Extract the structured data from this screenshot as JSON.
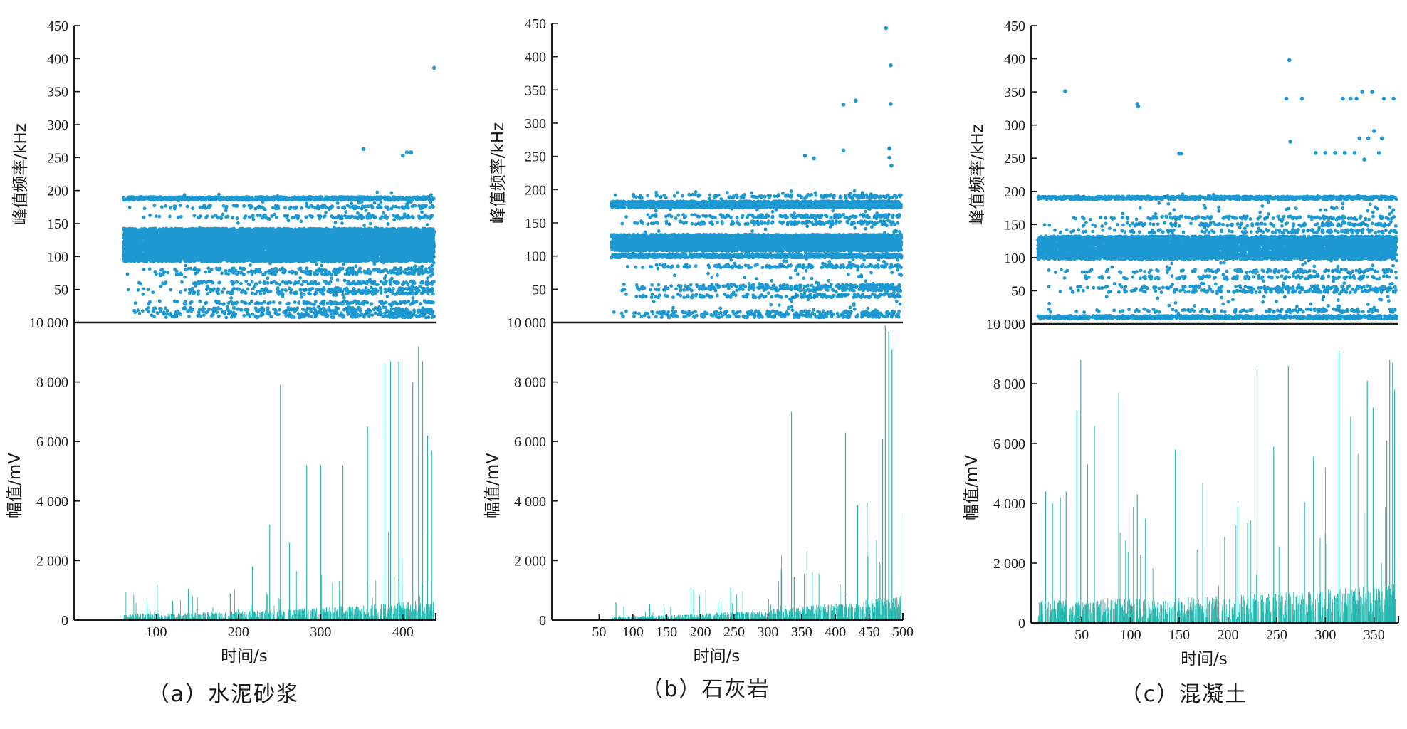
{
  "chart_data": [
    {
      "id": "a",
      "type": "scatter+bar",
      "caption": "（a）水泥砂浆",
      "xlabel": "时间/s",
      "ylabel_top": "峰值频率/kHz",
      "ylabel_bottom": "幅值/mV",
      "xlim": [
        0,
        440
      ],
      "xticks": [
        100,
        200,
        300,
        400
      ],
      "top_ylim": [
        0,
        450
      ],
      "top_yticks": [
        50,
        100,
        150,
        200,
        250,
        300,
        350,
        400,
        450
      ],
      "bottom_ylim": [
        0,
        10000
      ],
      "bottom_yticks": [
        0,
        2000,
        4000,
        6000,
        8000,
        10000
      ],
      "bottom_ytick_labels": [
        "0",
        "2 000",
        "4 000",
        "6 000",
        "8 000",
        "10 000"
      ],
      "scatter_color": "#1e98d0",
      "bar_color": "#22b8b0",
      "dense_start": 60,
      "dense_bands_khz": [
        95,
        100,
        105,
        110,
        115,
        120,
        125,
        130,
        135,
        140,
        188
      ],
      "sparse_bands_khz": [
        10,
        15,
        20,
        30,
        45,
        50,
        60,
        75,
        80,
        160,
        175
      ],
      "peak_points": [
        [
          352,
          263
        ],
        [
          400,
          253
        ],
        [
          405,
          258
        ],
        [
          410,
          258
        ],
        [
          438,
          386
        ]
      ],
      "major_spikes": [
        [
          251,
          7900
        ],
        [
          283,
          5200
        ],
        [
          300,
          5200
        ],
        [
          327,
          5200
        ],
        [
          357,
          6500
        ],
        [
          378,
          8600
        ],
        [
          385,
          8700
        ],
        [
          395,
          8700
        ],
        [
          412,
          8000
        ],
        [
          419,
          9200
        ],
        [
          424,
          8700
        ],
        [
          430,
          6200
        ],
        [
          435,
          5700
        ],
        [
          120,
          650
        ],
        [
          139,
          1050
        ],
        [
          190,
          900
        ],
        [
          217,
          1800
        ],
        [
          238,
          3200
        ],
        [
          262,
          2600
        ]
      ],
      "growth": 2.4,
      "base_mv": 120
    },
    {
      "id": "b",
      "type": "scatter+bar",
      "caption": "（b）石灰岩",
      "xlabel": "时间/s",
      "ylabel_top": "峰值频率/kHz",
      "ylabel_bottom": "幅值/mV",
      "xlim": [
        0,
        500
      ],
      "xticks": [
        50,
        100,
        150,
        200,
        250,
        300,
        350,
        400,
        450,
        500
      ],
      "top_ylim": [
        0,
        450
      ],
      "top_yticks": [
        50,
        100,
        150,
        200,
        250,
        300,
        350,
        400,
        450
      ],
      "bottom_ylim": [
        0,
        10000
      ],
      "bottom_yticks": [
        0,
        2000,
        4000,
        6000,
        8000,
        10000
      ],
      "bottom_ytick_labels": [
        "0",
        "2 000",
        "4 000",
        "6 000",
        "8 000",
        "10 000"
      ],
      "scatter_color": "#1e98d0",
      "bar_color": "#22b8b0",
      "dense_start": 68,
      "dense_bands_khz": [
        100,
        110,
        115,
        120,
        125,
        130,
        175,
        180
      ],
      "sparse_bands_khz": [
        10,
        15,
        40,
        50,
        55,
        85,
        150,
        160,
        190
      ],
      "peak_points": [
        [
          355,
          251
        ],
        [
          368,
          247
        ],
        [
          412,
          328
        ],
        [
          412,
          259
        ],
        [
          430,
          334
        ],
        [
          475,
          443
        ],
        [
          482,
          387
        ],
        [
          482,
          329
        ],
        [
          480,
          262
        ],
        [
          483,
          236
        ],
        [
          480,
          248
        ]
      ],
      "major_spikes": [
        [
          335,
          7000
        ],
        [
          339,
          1450
        ],
        [
          358,
          2300
        ],
        [
          407,
          1200
        ],
        [
          415,
          6300
        ],
        [
          433,
          3850
        ],
        [
          447,
          3950
        ],
        [
          470,
          6100
        ],
        [
          474,
          9900
        ],
        [
          479,
          9700
        ],
        [
          484,
          9100
        ],
        [
          245,
          1100
        ],
        [
          75,
          600
        ],
        [
          125,
          550
        ]
      ],
      "growth": 6.0,
      "base_mv": 70
    },
    {
      "id": "c",
      "type": "scatter+bar",
      "caption": "（c）混凝土",
      "xlabel": "时间/s",
      "ylabel_top": "峰值频率/kHz",
      "ylabel_bottom": "幅值/mV",
      "xlim": [
        0,
        375
      ],
      "xticks": [
        50,
        100,
        150,
        200,
        250,
        300,
        350
      ],
      "top_ylim": [
        0,
        450
      ],
      "top_yticks": [
        50,
        100,
        150,
        200,
        250,
        300,
        350,
        400,
        450
      ],
      "bottom_ylim": [
        0,
        10000
      ],
      "bottom_yticks": [
        0,
        2000,
        4000,
        6000,
        8000,
        10000
      ],
      "bottom_ytick_labels": [
        "0",
        "2 000",
        "4 000",
        "6 000",
        "8 000",
        "10 000"
      ],
      "scatter_color": "#1e98d0",
      "bar_color": "#22b8b0",
      "dense_start": 5,
      "dense_bands_khz": [
        10,
        100,
        105,
        110,
        115,
        120,
        125,
        130,
        190
      ],
      "sparse_bands_khz": [
        20,
        50,
        55,
        70,
        80,
        140,
        150,
        160
      ],
      "peak_points": [
        [
          33,
          351
        ],
        [
          107,
          332
        ],
        [
          108,
          328
        ],
        [
          150,
          257
        ],
        [
          152,
          257
        ],
        [
          263,
          398
        ],
        [
          264,
          275
        ],
        [
          260,
          340
        ],
        [
          276,
          340
        ],
        [
          290,
          258
        ],
        [
          300,
          258
        ],
        [
          310,
          258
        ],
        [
          320,
          258
        ],
        [
          330,
          258
        ],
        [
          318,
          340
        ],
        [
          326,
          340
        ],
        [
          332,
          340
        ],
        [
          338,
          350
        ],
        [
          348,
          350
        ],
        [
          360,
          340
        ],
        [
          370,
          340
        ],
        [
          335,
          280
        ],
        [
          344,
          280
        ],
        [
          350,
          291
        ],
        [
          358,
          280
        ],
        [
          340,
          248
        ],
        [
          355,
          258
        ]
      ],
      "major_spikes": [
        [
          13,
          4400
        ],
        [
          20,
          4000
        ],
        [
          28,
          4200
        ],
        [
          34,
          4400
        ],
        [
          45,
          7100
        ],
        [
          49,
          8800
        ],
        [
          56,
          5300
        ],
        [
          63,
          6600
        ],
        [
          88,
          7700
        ],
        [
          107,
          4300
        ],
        [
          146,
          5800
        ],
        [
          230,
          8500
        ],
        [
          247,
          5900
        ],
        [
          262,
          8600
        ],
        [
          300,
          3000
        ],
        [
          314,
          9100
        ],
        [
          326,
          6900
        ],
        [
          343,
          8100
        ],
        [
          349,
          7200
        ],
        [
          363,
          6100
        ],
        [
          366,
          8800
        ],
        [
          369,
          8700
        ],
        [
          371,
          7800
        ]
      ],
      "growth": 0.7,
      "base_mv": 450
    }
  ]
}
